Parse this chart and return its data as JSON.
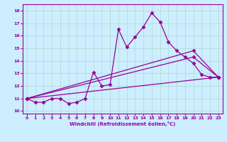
{
  "xlabel": "Windchill (Refroidissement éolien,°C)",
  "xlim": [
    -0.5,
    23.5
  ],
  "ylim": [
    9.8,
    18.5
  ],
  "yticks": [
    10,
    11,
    12,
    13,
    14,
    15,
    16,
    17,
    18
  ],
  "xticks": [
    0,
    1,
    2,
    3,
    4,
    5,
    6,
    7,
    8,
    9,
    10,
    11,
    12,
    13,
    14,
    15,
    16,
    17,
    18,
    19,
    20,
    21,
    22,
    23
  ],
  "bg_color": "#cceeff",
  "grid_color": "#b0d8cc",
  "line_color": "#990099",
  "line1_x": [
    0,
    1,
    2,
    3,
    4,
    5,
    6,
    7,
    8,
    9,
    10,
    11,
    12,
    13,
    14,
    15,
    16,
    17,
    18,
    19,
    20,
    21,
    22,
    23
  ],
  "line1_y": [
    11.0,
    10.7,
    10.7,
    11.0,
    11.0,
    10.6,
    10.7,
    11.0,
    13.1,
    12.0,
    12.1,
    16.5,
    15.1,
    15.9,
    16.7,
    17.8,
    17.1,
    15.5,
    14.8,
    14.3,
    13.8,
    12.9,
    12.7,
    12.7
  ],
  "trend1_x": [
    0,
    23
  ],
  "trend1_y": [
    11.0,
    12.7
  ],
  "trend2_x": [
    0,
    20,
    23
  ],
  "trend2_y": [
    11.0,
    14.3,
    12.7
  ],
  "trend3_x": [
    0,
    20,
    23
  ],
  "trend3_y": [
    11.0,
    14.8,
    12.7
  ],
  "marker": "D",
  "markersize": 2.5,
  "linewidth": 0.9
}
